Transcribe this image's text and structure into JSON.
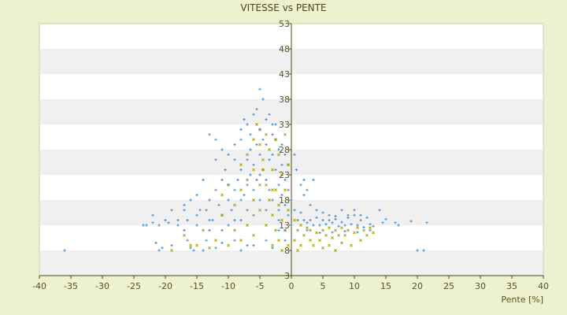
{
  "chart_data": {
    "type": "scatter",
    "title": "VITESSE vs PENTE",
    "xlabel": "Pente [%]",
    "ylabel": "",
    "xlim": [
      -40,
      40
    ],
    "ylim": [
      3,
      53
    ],
    "x_ticks": [
      -40,
      -35,
      -30,
      -25,
      -20,
      -15,
      -10,
      -5,
      0,
      5,
      10,
      15,
      20,
      25,
      30,
      35,
      40
    ],
    "y_ticks": [
      3,
      8,
      13,
      18,
      23,
      28,
      33,
      38,
      43,
      48,
      53
    ],
    "grid": "alternating horizontal bands",
    "legend": "none",
    "series": [
      {
        "color": "#3a8fd8",
        "marker": "plus",
        "values": [
          [
            -36,
            8
          ],
          [
            -23.5,
            13
          ],
          [
            -23,
            13
          ],
          [
            -22,
            15
          ],
          [
            -21.5,
            9.5
          ],
          [
            -21,
            8
          ],
          [
            -20,
            14
          ],
          [
            -19.5,
            13.5
          ],
          [
            -19,
            9
          ],
          [
            -18,
            14
          ],
          [
            -17,
            16
          ],
          [
            -16.5,
            14
          ],
          [
            -16,
            18
          ],
          [
            -16,
            8.5
          ],
          [
            -15,
            19
          ],
          [
            -15,
            13
          ],
          [
            -14.5,
            16
          ],
          [
            -14,
            22
          ],
          [
            -13.5,
            16
          ],
          [
            -13,
            31
          ],
          [
            -13,
            18
          ],
          [
            -12.5,
            14
          ],
          [
            -12,
            30
          ],
          [
            -12,
            20
          ],
          [
            -11.5,
            17
          ],
          [
            -11,
            22
          ],
          [
            -11,
            15
          ],
          [
            -10.5,
            24
          ],
          [
            -10,
            18
          ],
          [
            -10,
            21
          ],
          [
            -9.5,
            16
          ],
          [
            -9,
            26
          ],
          [
            -9,
            20
          ],
          [
            -8.5,
            22
          ],
          [
            -8,
            30
          ],
          [
            -8,
            24
          ],
          [
            -8,
            18
          ],
          [
            -7.5,
            34
          ],
          [
            -7.5,
            19
          ],
          [
            -7,
            33
          ],
          [
            -7,
            26
          ],
          [
            -7,
            21
          ],
          [
            -6.5,
            28
          ],
          [
            -6.5,
            23
          ],
          [
            -6,
            35
          ],
          [
            -6,
            25
          ],
          [
            -6,
            20
          ],
          [
            -5.5,
            36
          ],
          [
            -5.5,
            29
          ],
          [
            -5.5,
            22
          ],
          [
            -5,
            40
          ],
          [
            -5,
            32
          ],
          [
            -5,
            27
          ],
          [
            -5,
            23
          ],
          [
            -4.5,
            38
          ],
          [
            -4.5,
            24
          ],
          [
            -4,
            34
          ],
          [
            -4,
            29
          ],
          [
            -4,
            22
          ],
          [
            -3.5,
            35
          ],
          [
            -3.5,
            26
          ],
          [
            -3.5,
            20
          ],
          [
            -3,
            33
          ],
          [
            -3,
            27
          ],
          [
            -3,
            18
          ],
          [
            -2.5,
            30
          ],
          [
            -2.5,
            24
          ],
          [
            -2,
            28
          ],
          [
            -2,
            21
          ],
          [
            -2,
            16
          ],
          [
            -1.5,
            25
          ],
          [
            -1.5,
            19
          ],
          [
            -1,
            22
          ],
          [
            -1,
            17
          ],
          [
            -0.5,
            20
          ],
          [
            -0.5,
            15
          ],
          [
            0,
            18
          ],
          [
            0.5,
            16
          ],
          [
            0.8,
            24
          ],
          [
            1,
            14
          ],
          [
            1.5,
            15.5
          ],
          [
            2,
            14
          ],
          [
            2.5,
            13.5
          ],
          [
            3,
            14
          ],
          [
            3.5,
            13
          ],
          [
            4,
            14.5
          ],
          [
            4.5,
            13
          ],
          [
            5,
            14
          ],
          [
            5.5,
            13.2
          ],
          [
            6,
            14
          ],
          [
            6.5,
            13.5
          ],
          [
            7,
            14.2
          ],
          [
            7.5,
            12.8
          ],
          [
            8,
            13.6
          ],
          [
            8.5,
            13
          ],
          [
            9,
            14.5
          ],
          [
            9.5,
            13.2
          ],
          [
            10,
            15
          ],
          [
            10.5,
            13
          ],
          [
            11,
            14
          ],
          [
            11.5,
            12.6
          ],
          [
            12,
            14.5
          ],
          [
            12.5,
            13.2
          ],
          [
            13,
            12.8
          ],
          [
            14,
            16
          ],
          [
            14.5,
            13.5
          ],
          [
            15,
            14.2
          ],
          [
            16.5,
            13.5
          ],
          [
            17,
            13
          ],
          [
            19,
            13.8
          ],
          [
            20,
            8
          ],
          [
            21,
            8
          ],
          [
            21.5,
            13.5
          ],
          [
            2,
            19
          ],
          [
            3,
            17
          ],
          [
            4,
            16
          ],
          [
            5,
            15.5
          ],
          [
            6,
            15
          ],
          [
            7,
            14.8
          ],
          [
            8,
            16
          ],
          [
            9,
            15
          ],
          [
            10,
            16
          ],
          [
            11,
            15
          ],
          [
            2.5,
            12
          ],
          [
            4.5,
            11.5
          ],
          [
            6.5,
            11.6
          ],
          [
            8.5,
            11.8
          ],
          [
            10.5,
            11.6
          ],
          [
            12.5,
            12
          ],
          [
            1.5,
            21
          ],
          [
            2,
            22
          ],
          [
            2.5,
            20
          ],
          [
            3.5,
            22
          ],
          [
            -14,
            8
          ],
          [
            -12,
            8.5
          ],
          [
            -9,
            10
          ],
          [
            -7,
            9
          ],
          [
            -4,
            10
          ],
          [
            -2,
            12
          ],
          [
            -20.5,
            8.5
          ],
          [
            -17,
            12
          ],
          [
            -16.5,
            10
          ],
          [
            -15.5,
            8
          ],
          [
            -13.5,
            10
          ],
          [
            -11,
            9.5
          ],
          [
            -8,
            8
          ],
          [
            -6,
            9
          ],
          [
            -3,
            8.5
          ],
          [
            -1,
            10
          ],
          [
            0,
            13
          ],
          [
            -18,
            13
          ],
          [
            -13,
            12
          ],
          [
            -10,
            13
          ],
          [
            -8,
            14
          ],
          [
            -6,
            15
          ],
          [
            -4,
            16
          ],
          [
            -2,
            14
          ],
          [
            -1,
            12
          ],
          [
            -12,
            26
          ],
          [
            -11,
            28
          ],
          [
            -10,
            27
          ],
          [
            -9,
            29
          ],
          [
            -8,
            32
          ],
          [
            -6.5,
            31
          ],
          [
            -4.5,
            30
          ],
          [
            -3,
            31
          ],
          [
            -2.5,
            33
          ],
          [
            -1.5,
            29
          ],
          [
            -1,
            27
          ],
          [
            -0.5,
            25
          ],
          [
            0.5,
            27
          ],
          [
            -5,
            18
          ],
          [
            -7,
            16
          ],
          [
            -9,
            14
          ],
          [
            -11,
            12
          ],
          [
            -13,
            14
          ],
          [
            -15,
            15
          ],
          [
            -17,
            17
          ],
          [
            -19,
            16
          ],
          [
            -21,
            13
          ],
          [
            -22,
            13.5
          ]
        ]
      },
      {
        "color": "#a8a800",
        "marker": "x",
        "values": [
          [
            -19,
            8
          ],
          [
            -16,
            9
          ],
          [
            -13,
            8.5
          ],
          [
            -12,
            10
          ],
          [
            -10,
            9
          ],
          [
            -9,
            12
          ],
          [
            -8,
            10
          ],
          [
            -7,
            13
          ],
          [
            -6,
            11
          ],
          [
            -5.5,
            33
          ],
          [
            -5,
            29
          ],
          [
            -5,
            16
          ],
          [
            -4.5,
            26
          ],
          [
            -4,
            31
          ],
          [
            -4,
            21
          ],
          [
            -4,
            13
          ],
          [
            -3.5,
            28
          ],
          [
            -3.5,
            18
          ],
          [
            -3,
            24
          ],
          [
            -3,
            15
          ],
          [
            -3,
            9
          ],
          [
            -2.5,
            30
          ],
          [
            -2.5,
            20
          ],
          [
            -2.5,
            12
          ],
          [
            -2,
            27
          ],
          [
            -2,
            17
          ],
          [
            -2,
            10
          ],
          [
            -1.5,
            23
          ],
          [
            -1.5,
            14
          ],
          [
            -1.5,
            8
          ],
          [
            -1,
            31
          ],
          [
            -1,
            20
          ],
          [
            -1,
            12
          ],
          [
            -0.5,
            25
          ],
          [
            -0.5,
            16
          ],
          [
            -0.5,
            9
          ],
          [
            0.5,
            14
          ],
          [
            0.5,
            10
          ],
          [
            1,
            12
          ],
          [
            1,
            8
          ],
          [
            1.5,
            13
          ],
          [
            1.5,
            9
          ],
          [
            2,
            11
          ],
          [
            2.5,
            12.5
          ],
          [
            3,
            10
          ],
          [
            3,
            12
          ],
          [
            3.5,
            9
          ],
          [
            4,
            11.5
          ],
          [
            4.5,
            10
          ],
          [
            5,
            12
          ],
          [
            5,
            8.5
          ],
          [
            5.5,
            11
          ],
          [
            6,
            12.5
          ],
          [
            6,
            9
          ],
          [
            6.5,
            10.5
          ],
          [
            7,
            12
          ],
          [
            7,
            8
          ],
          [
            7.5,
            11
          ],
          [
            8,
            9.5
          ],
          [
            8,
            12.5
          ],
          [
            8.5,
            11
          ],
          [
            9,
            12
          ],
          [
            9.5,
            9
          ],
          [
            10,
            11.5
          ],
          [
            10.5,
            12.5
          ],
          [
            11,
            10
          ],
          [
            11.5,
            12
          ],
          [
            12,
            11
          ],
          [
            12.5,
            12.5
          ],
          [
            13,
            11.5
          ],
          [
            -8,
            20
          ],
          [
            -7,
            22
          ],
          [
            -6,
            18
          ],
          [
            -6,
            24
          ],
          [
            -5,
            21
          ],
          [
            -9,
            17
          ],
          [
            -11,
            15
          ],
          [
            -14,
            12
          ],
          [
            -15,
            9
          ],
          [
            -17,
            11
          ],
          [
            -11,
            19
          ],
          [
            -10,
            21
          ],
          [
            -8,
            25
          ],
          [
            -7,
            27
          ],
          [
            -6,
            30
          ],
          [
            -5,
            32
          ],
          [
            -4.5,
            24
          ],
          [
            -3,
            20
          ]
        ]
      }
    ]
  }
}
